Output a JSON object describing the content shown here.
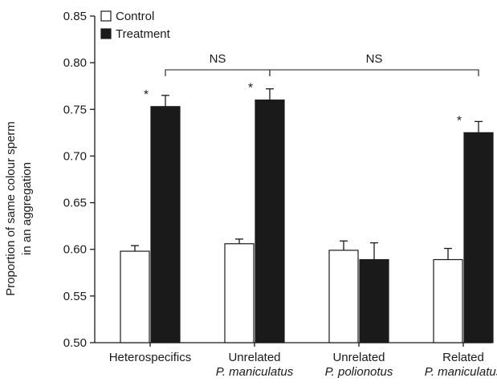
{
  "chart_data": {
    "type": "bar",
    "title": "",
    "xlabel": "",
    "ylabel": {
      "line1": "Proportion of same colour sperm",
      "line2": "in an aggregation"
    },
    "ylim": [
      0.5,
      0.85
    ],
    "yticks": [
      "0.50",
      "0.55",
      "0.60",
      "0.65",
      "0.70",
      "0.75",
      "0.80",
      "0.85"
    ],
    "ytick_values": [
      0.5,
      0.55,
      0.6,
      0.65,
      0.7,
      0.75,
      0.8,
      0.85
    ],
    "grid": false,
    "legend_placement": "top-left",
    "categories": [
      {
        "line1": "Heterospecifics",
        "line2": "",
        "line2_italic": false
      },
      {
        "line1": "Unrelated",
        "line2": "P. maniculatus",
        "line2_italic": true
      },
      {
        "line1": "Unrelated",
        "line2": "P. polionotus",
        "line2_italic": true
      },
      {
        "line1": "Related",
        "line2": "P. maniculatus",
        "line2_italic": true
      }
    ],
    "series": [
      {
        "name": "Control",
        "color": "#ffffff",
        "values": [
          0.598,
          0.606,
          0.599,
          0.589
        ],
        "errors": [
          0.006,
          0.005,
          0.01,
          0.012
        ]
      },
      {
        "name": "Treatment",
        "color": "#1a1a1a",
        "values": [
          0.753,
          0.76,
          0.589,
          0.725
        ],
        "errors": [
          0.012,
          0.012,
          0.018,
          0.012
        ]
      }
    ],
    "significance": [
      {
        "category": 0,
        "label": "*"
      },
      {
        "category": 1,
        "label": "*"
      },
      {
        "category": 3,
        "label": "*"
      }
    ],
    "comparisons": [
      {
        "from": 0,
        "to": 1,
        "label": "NS"
      },
      {
        "from": 1,
        "to": 3,
        "label": "NS"
      }
    ]
  }
}
